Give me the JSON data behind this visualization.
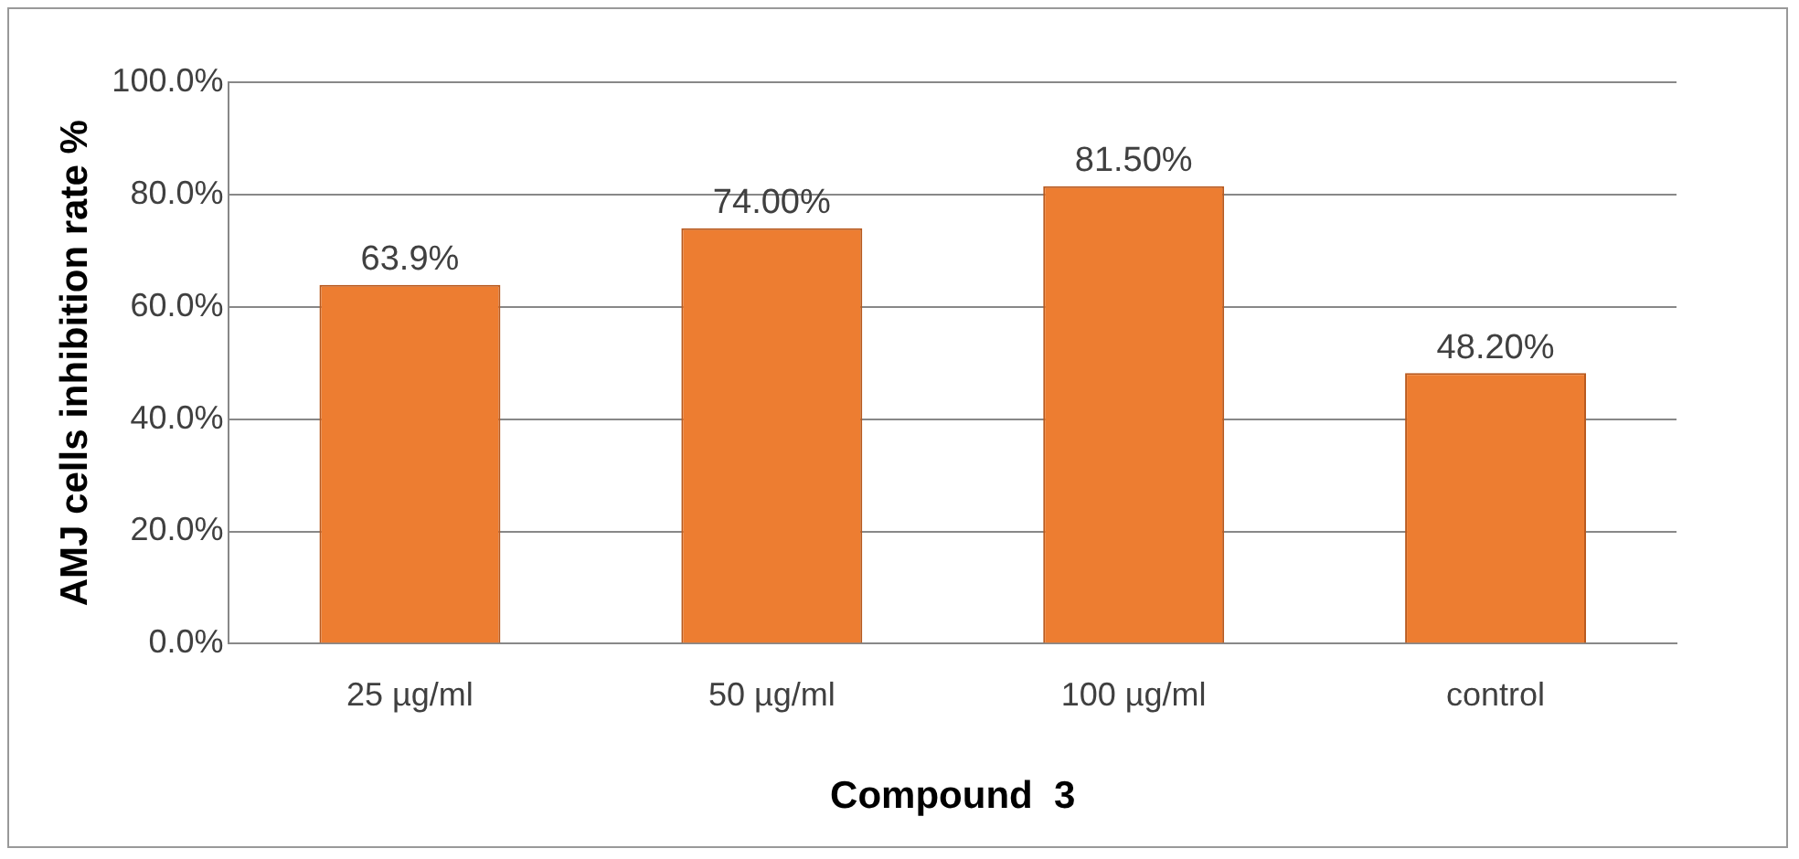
{
  "chart_data": {
    "type": "bar",
    "xlabel": "Compound  3",
    "ylabel": "AMJ cells inhibition rate %",
    "categories": [
      "25 µg/ml",
      "50 µg/ml",
      "100 µg/ml",
      "control"
    ],
    "values": [
      63.9,
      74.0,
      81.5,
      48.2
    ],
    "value_labels": [
      "63.9%",
      "74.00%",
      "81.50%",
      "48.20%"
    ],
    "color": "#ed7d31",
    "ylim": [
      0,
      100
    ],
    "yticks": [
      {
        "value": 0,
        "label": "0.0%"
      },
      {
        "value": 20,
        "label": "20.0%"
      },
      {
        "value": 40,
        "label": "40.0%"
      },
      {
        "value": 60,
        "label": "60.0%"
      },
      {
        "value": 80,
        "label": "80.0%"
      },
      {
        "value": 100,
        "label": "100.0%"
      }
    ],
    "grid": "y",
    "legend": false
  }
}
